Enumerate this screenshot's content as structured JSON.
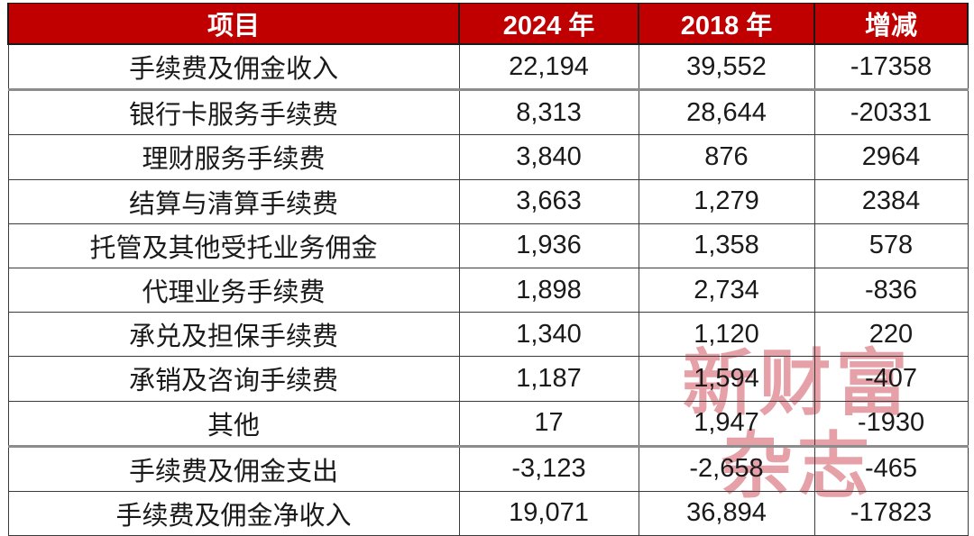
{
  "chart_data": {
    "type": "table",
    "title": "",
    "categories": [
      "手续费及佣金收入",
      "银行卡服务手续费",
      "理财服务手续费",
      "结算与清算手续费",
      "托管及其他受托业务佣金",
      "代理业务手续费",
      "承兑及担保手续费",
      "承销及咨询手续费",
      "其他",
      "手续费及佣金支出",
      "手续费及佣金净收入"
    ],
    "series": [
      {
        "name": "2024 年",
        "values": [
          22194,
          8313,
          3840,
          3663,
          1936,
          1898,
          1340,
          1187,
          17,
          -3123,
          19071
        ]
      },
      {
        "name": "2018 年",
        "values": [
          39552,
          28644,
          876,
          1279,
          1358,
          2734,
          1120,
          1594,
          1947,
          -2658,
          36894
        ]
      },
      {
        "name": "增减",
        "values": [
          -17358,
          -20331,
          2964,
          2384,
          578,
          -836,
          220,
          -407,
          -1930,
          -465,
          -17823
        ]
      }
    ],
    "legend_position": "none",
    "grid": true
  },
  "table": {
    "columns": [
      {
        "key": "item",
        "label": "项目"
      },
      {
        "key": "y2024",
        "label": "2024 年"
      },
      {
        "key": "y2018",
        "label": "2018 年"
      },
      {
        "key": "change",
        "label": "增减"
      }
    ],
    "rows": [
      {
        "item": "手续费及佣金收入",
        "y2024": "22,194",
        "y2018": "39,552",
        "change": "-17358",
        "thick_top": false
      },
      {
        "item": "银行卡服务手续费",
        "y2024": "8,313",
        "y2018": "28,644",
        "change": "-20331",
        "thick_top": true
      },
      {
        "item": "理财服务手续费",
        "y2024": "3,840",
        "y2018": "876",
        "change": "2964",
        "thick_top": false
      },
      {
        "item": "结算与清算手续费",
        "y2024": "3,663",
        "y2018": "1,279",
        "change": "2384",
        "thick_top": false
      },
      {
        "item": "托管及其他受托业务佣金",
        "y2024": "1,936",
        "y2018": "1,358",
        "change": "578",
        "thick_top": false
      },
      {
        "item": "代理业务手续费",
        "y2024": "1,898",
        "y2018": "2,734",
        "change": "-836",
        "thick_top": false
      },
      {
        "item": "承兑及担保手续费",
        "y2024": "1,340",
        "y2018": "1,120",
        "change": "220",
        "thick_top": false
      },
      {
        "item": "承销及咨询手续费",
        "y2024": "1,187",
        "y2018": "1,594",
        "change": "-407",
        "thick_top": false
      },
      {
        "item": "其他",
        "y2024": "17",
        "y2018": "1,947",
        "change": "-1930",
        "thick_top": false
      },
      {
        "item": "手续费及佣金支出",
        "y2024": "-3,123",
        "y2018": "-2,658",
        "change": "-465",
        "thick_top": true
      },
      {
        "item": "手续费及佣金净收入",
        "y2024": "19,071",
        "y2018": "36,894",
        "change": "-17823",
        "thick_top": false
      }
    ]
  },
  "watermark": {
    "line1": "新财富",
    "line2": "杂志"
  },
  "colors": {
    "header_bg": "#c00000",
    "header_text": "#ffffff",
    "cell_text": "#1a1a1a",
    "grid_line": "#3b3b3b",
    "section_divider": "#8c8c8c",
    "watermark_red": "#c41c30"
  }
}
